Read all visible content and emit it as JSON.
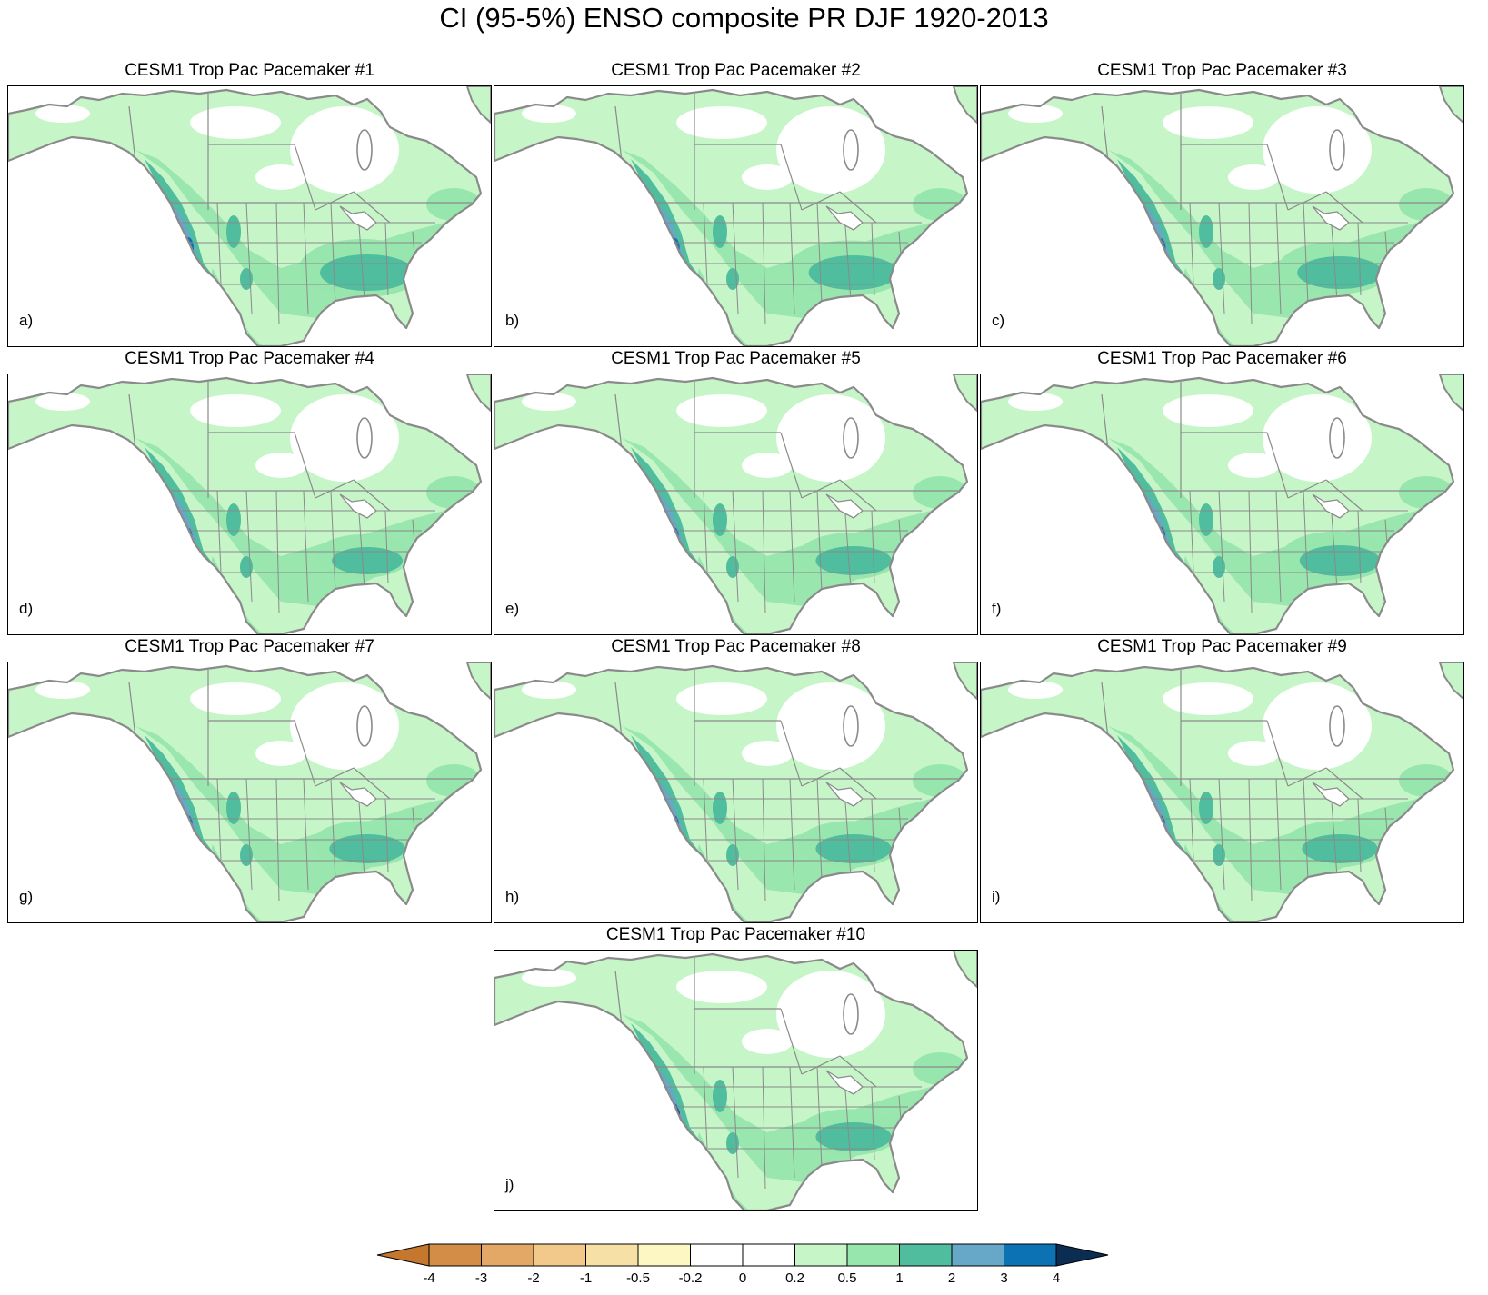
{
  "title": "CI (95-5%) ENSO composite PR DJF 1920-2013",
  "panels": [
    {
      "title": "CESM1 Trop Pac Pacemaker #1",
      "label": "a)",
      "west": 3,
      "se": 3,
      "intensity": 1.0
    },
    {
      "title": "CESM1 Trop Pac Pacemaker #2",
      "label": "b)",
      "west": 3,
      "se": 3,
      "intensity": 0.95
    },
    {
      "title": "CESM1 Trop Pac Pacemaker #3",
      "label": "c)",
      "west": 3,
      "se": 2,
      "intensity": 0.9
    },
    {
      "title": "CESM1 Trop Pac Pacemaker #4",
      "label": "d)",
      "west": 3,
      "se": 2,
      "intensity": 0.75
    },
    {
      "title": "CESM1 Trop Pac Pacemaker #5",
      "label": "e)",
      "west": 3,
      "se": 2,
      "intensity": 0.8
    },
    {
      "title": "CESM1 Trop Pac Pacemaker #6",
      "label": "f)",
      "west": 3,
      "se": 2,
      "intensity": 0.85
    },
    {
      "title": "CESM1 Trop Pac Pacemaker #7",
      "label": "g)",
      "west": 3,
      "se": 2,
      "intensity": 0.8
    },
    {
      "title": "CESM1 Trop Pac Pacemaker #8",
      "label": "h)",
      "west": 3,
      "se": 2,
      "intensity": 0.8
    },
    {
      "title": "CESM1 Trop Pac Pacemaker #9",
      "label": "i)",
      "west": 3,
      "se": 2,
      "intensity": 0.8
    },
    {
      "title": "CESM1 Trop Pac Pacemaker #10",
      "label": "j)",
      "west": 4,
      "se": 2,
      "intensity": 0.8
    }
  ],
  "colorbar": {
    "labels": [
      "-4",
      "-3",
      "-2",
      "-1",
      "-0.5",
      "-0.2",
      "0",
      "0.2",
      "0.5",
      "1",
      "2",
      "3",
      "4"
    ],
    "colors": [
      "#c4772d",
      "#d48d47",
      "#e3a766",
      "#f2c98a",
      "#f6e0a6",
      "#fdf7c4",
      "#ffffff",
      "#ffffff",
      "#c6f5c8",
      "#97e6ad",
      "#4fbd9e",
      "#67a7c7",
      "#0d72b4",
      "#0c2d52"
    ]
  },
  "colors": {
    "level1": "#c6f5c8",
    "level2": "#97e6ad",
    "level3": "#4fbd9e",
    "level4": "#67a7c7",
    "level5": "#0d72b4",
    "level6": "#0c2d52",
    "boundary": "#8a8a8a"
  }
}
